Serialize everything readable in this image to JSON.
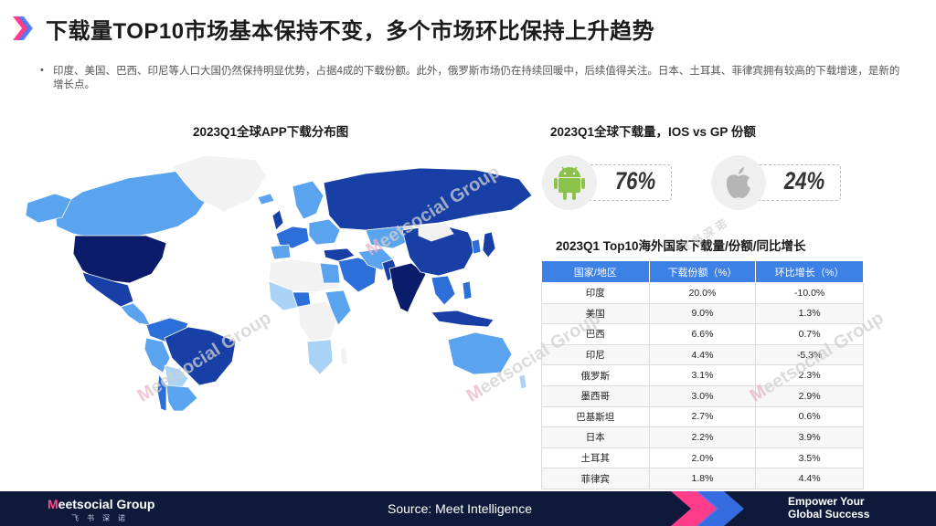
{
  "header": {
    "title": "下载量TOP10市场基本保持不变，多个市场环比保持上升趋势",
    "intro": "印度、美国、巴西、印尼等人口大国仍然保持明显优势，占据4成的下载份额。此外，俄罗斯市场仍在持续回暖中，后续值得关注。日本、土耳其、菲律宾拥有较高的下载增速，是新的增长点。",
    "bullet": "•"
  },
  "map": {
    "title": "2023Q1全球APP下载分布图",
    "palette": {
      "darkest": "#0b1c6a",
      "dark": "#173fa6",
      "medium": "#2d6fd8",
      "light": "#5aa3ee",
      "lightest": "#a8d2f6",
      "nodata": "#f2f2f2",
      "border": "#ffffff"
    }
  },
  "share": {
    "title": "2023Q1全球下载量，IOS vs GP 份额",
    "android": {
      "icon": "android-icon",
      "pct": "76%",
      "color": "#8bc34a"
    },
    "ios": {
      "icon": "apple-icon",
      "pct": "24%",
      "color": "#b5b5b5"
    }
  },
  "table": {
    "title": "2023Q1 Top10海外国家下载量/份额/同比增长",
    "header_color": "#3d80e6",
    "headers": [
      "国家/地区",
      "下载份额（%）",
      "环比增长（%）"
    ],
    "rows": [
      [
        "印度",
        "20.0%",
        "-10.0%"
      ],
      [
        "美国",
        "9.0%",
        "1.3%"
      ],
      [
        "巴西",
        "6.6%",
        "0.7%"
      ],
      [
        "印尼",
        "4.4%",
        "-5.3%"
      ],
      [
        "俄罗斯",
        "3.1%",
        "2.3%"
      ],
      [
        "墨西哥",
        "3.0%",
        "2.9%"
      ],
      [
        "巴基斯坦",
        "2.7%",
        "0.6%"
      ],
      [
        "日本",
        "2.2%",
        "3.9%"
      ],
      [
        "土耳其",
        "2.0%",
        "3.5%"
      ],
      [
        "菲律宾",
        "1.8%",
        "4.4%"
      ]
    ]
  },
  "watermark": {
    "m": "M",
    "text": "eetsocial Group",
    "cn": "飞 书 深 诺"
  },
  "footer": {
    "brand_m": "M",
    "brand_rest": "eetsocial Group",
    "brand_cn": "飞书深诺",
    "source": "Source:   Meet Intelligence",
    "slogan_line1": "Empower Your",
    "slogan_line2": "Global Success",
    "accent_pink": "#ff3d8b",
    "accent_blue": "#3d7bff"
  }
}
